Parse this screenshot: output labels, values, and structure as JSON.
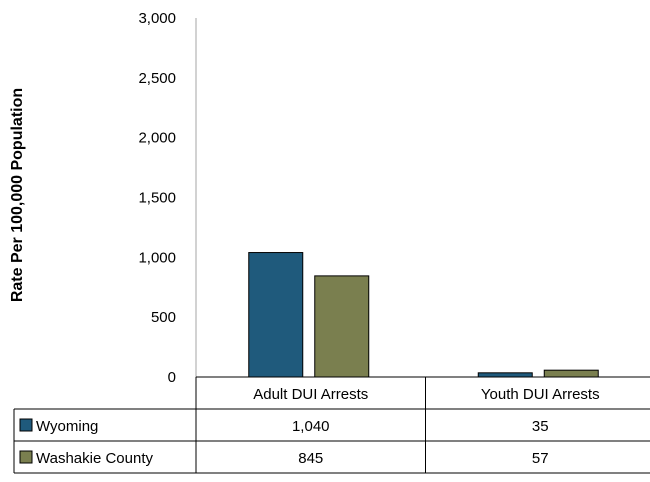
{
  "chart_data": {
    "type": "bar",
    "categories": [
      "Adult DUI Arrests",
      "Youth DUI Arrests"
    ],
    "series": [
      {
        "name": "Wyoming",
        "values": [
          1040,
          35
        ],
        "color": "#1f5a7c",
        "labels": [
          "1,040",
          "35"
        ]
      },
      {
        "name": "Washakie County",
        "values": [
          845,
          57
        ],
        "color": "#7a7f4f",
        "labels": [
          "845",
          "57"
        ]
      }
    ],
    "title": "",
    "xlabel": "",
    "ylabel": "Rate Per 100,000 Population",
    "ylim": [
      0,
      3000
    ],
    "yticks": [
      0,
      500,
      1000,
      1500,
      2000,
      2500,
      3000
    ],
    "ytick_labels": [
      "0",
      "500",
      "1,000",
      "1,500",
      "2,000",
      "2,500",
      "3,000"
    ],
    "grid": false,
    "legend": "data-table"
  }
}
